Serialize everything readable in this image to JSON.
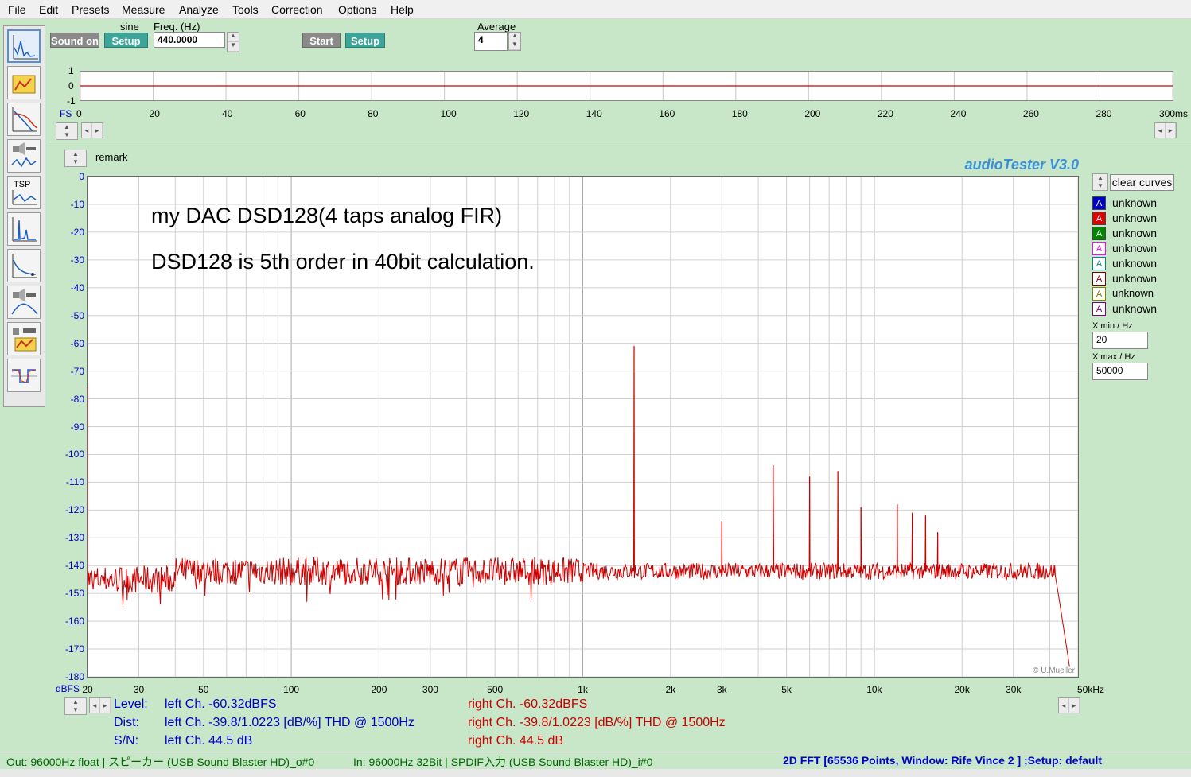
{
  "menu": [
    "File",
    "Edit",
    "Presets",
    "Measure",
    "Analyze",
    "Tools",
    "Correction",
    "Options",
    "Help"
  ],
  "generator": {
    "sound_on_label": "Sound on",
    "wave_label": "sine",
    "setup_label": "Setup",
    "freq_label": "Freq. (Hz)",
    "freq_value": "440.0000",
    "start_label": "Start",
    "setup2_label": "Setup",
    "average_label": "Average",
    "average_value": "4"
  },
  "time_plot": {
    "y_ticks": [
      "1",
      "0",
      "-1"
    ],
    "fs_label": "FS",
    "x_ticks": [
      "0",
      "20",
      "40",
      "60",
      "80",
      "100",
      "120",
      "140",
      "160",
      "180",
      "200",
      "220",
      "240",
      "260",
      "280",
      "300ms"
    ]
  },
  "fft": {
    "remark_label": "remark",
    "brand": "audioTester  V3.0",
    "annotation_1": "my DAC DSD128(4 taps analog FIR)",
    "annotation_2": "DSD128 is 5th order in 40bit calculation.",
    "copyright": "© U.Mueller",
    "y_unit": "dBFS"
  },
  "chart_data": {
    "type": "line",
    "xlabel": "",
    "ylabel": "dBFS",
    "x_scale": "log",
    "xlim": [
      20,
      50000
    ],
    "ylim": [
      -180,
      0
    ],
    "x_tick_labels": [
      "20",
      "30",
      "50",
      "100",
      "200",
      "300",
      "500",
      "1k",
      "2k",
      "3k",
      "5k",
      "10k",
      "20k",
      "30k",
      "50kHz"
    ],
    "y_tick_labels": [
      "0",
      "-10",
      "-20",
      "-30",
      "-40",
      "-50",
      "-60",
      "-70",
      "-80",
      "-90",
      "-100",
      "-110",
      "-120",
      "-130",
      "-140",
      "-150",
      "-160",
      "-170",
      "-180"
    ],
    "grid": true,
    "series": [
      {
        "color": "#cc0000",
        "noise_floor_db": -142,
        "peaks": [
          {
            "x": 20,
            "y": -75
          },
          {
            "x": 1500,
            "y": -61
          },
          {
            "x": 3000,
            "y": -124
          },
          {
            "x": 4500,
            "y": -104
          },
          {
            "x": 6000,
            "y": -108
          },
          {
            "x": 7500,
            "y": -106
          },
          {
            "x": 9000,
            "y": -119
          },
          {
            "x": 12000,
            "y": -118
          },
          {
            "x": 13500,
            "y": -121
          },
          {
            "x": 15000,
            "y": -122
          },
          {
            "x": 16500,
            "y": -128
          }
        ],
        "rolloff": [
          {
            "x": 42000,
            "y": -145
          },
          {
            "x": 45000,
            "y": -165
          },
          {
            "x": 47000,
            "y": -178
          }
        ]
      }
    ]
  },
  "legend": {
    "clear_label": "clear curves",
    "items": [
      {
        "glyph": "A",
        "name": "unknown",
        "color": "#0000cc",
        "style": "filled"
      },
      {
        "glyph": "A",
        "name": "unknown",
        "color": "#e00000",
        "style": "filled"
      },
      {
        "glyph": "A",
        "name": "unknown",
        "color": "#008800",
        "style": "filled"
      },
      {
        "glyph": "A",
        "name": "unknown",
        "color": "#ff00ff",
        "style": "outline"
      },
      {
        "glyph": "A",
        "name": "unknown",
        "color": "#008888",
        "style": "outline"
      },
      {
        "glyph": "A",
        "name": "unknown",
        "color": "#800000",
        "style": "outline"
      },
      {
        "glyph": "A",
        "name": "unknown",
        "color": "#808000",
        "style": "outline"
      },
      {
        "glyph": "A",
        "name": "unknown",
        "color": "#800080",
        "style": "outline"
      }
    ],
    "xmin_label": "X min / Hz",
    "xmin_value": "20",
    "xmax_label": "X max / Hz",
    "xmax_value": "50000"
  },
  "readout": {
    "level_label": "Level:",
    "dist_label": "Dist:",
    "sn_label": "S/N:",
    "left_level": "left Ch. -60.32dBFS",
    "left_dist": "left Ch. -39.8/1.0223 [dB/%] THD @ 1500Hz",
    "left_sn": "left Ch. 44.5 dB",
    "right_level": "right Ch. -60.32dBFS",
    "right_dist": "right Ch. -39.8/1.0223 [dB/%] THD @ 1500Hz",
    "right_sn": "right Ch. 44.5 dB"
  },
  "status": {
    "out": "Out: 96000Hz float  | スピーカー (USB Sound Blaster HD)_o#0",
    "in": "In: 96000Hz 32Bit  | SPDIF入力 (USB Sound Blaster HD)_i#0",
    "mode": "2D FFT [65536 Points, Window: Rife Vince 2 ]  ;Setup:  default"
  },
  "colors": {
    "background": "#c8e6c8",
    "trace": "#cc0000",
    "left_channel": "#0000cc",
    "right_channel": "#cc0000",
    "brand": "#3a8fd8"
  }
}
